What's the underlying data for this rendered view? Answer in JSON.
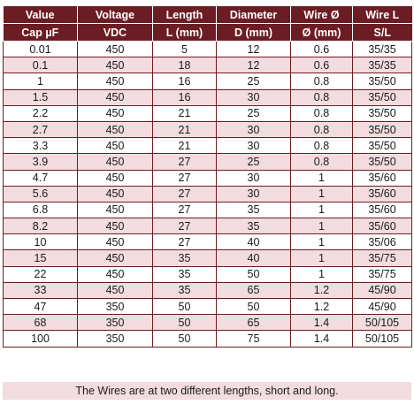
{
  "colors": {
    "header_bg": "#6b1d23",
    "header_text": "#ffffff",
    "row_alt": "#f2dcdf",
    "row_plain": "#ffffff",
    "border": "#6b1d23"
  },
  "table": {
    "header_row1": [
      "Value",
      "Voltage",
      "Length",
      "Diameter",
      "Wire Ø",
      "Wire L"
    ],
    "header_row2": [
      "Cap µF",
      "VDC",
      "L (mm)",
      "D (mm)",
      "Ø (mm)",
      "S/L"
    ],
    "rows": [
      [
        "0.01",
        "450",
        "5",
        "12",
        "0.6",
        "35/35"
      ],
      [
        "0.1",
        "450",
        "18",
        "12",
        "0.6",
        "35/35"
      ],
      [
        "1",
        "450",
        "16",
        "25",
        "0.8",
        "35/50"
      ],
      [
        "1.5",
        "450",
        "16",
        "30",
        "0.8",
        "35/50"
      ],
      [
        "2.2",
        "450",
        "21",
        "25",
        "0.8",
        "35/50"
      ],
      [
        "2.7",
        "450",
        "21",
        "30",
        "0.8",
        "35/50"
      ],
      [
        "3.3",
        "450",
        "21",
        "30",
        "0.8",
        "35/50"
      ],
      [
        "3.9",
        "450",
        "27",
        "25",
        "0.8",
        "35/50"
      ],
      [
        "4.7",
        "450",
        "27",
        "30",
        "1",
        "35/60"
      ],
      [
        "5.6",
        "450",
        "27",
        "30",
        "1",
        "35/60"
      ],
      [
        "6.8",
        "450",
        "27",
        "35",
        "1",
        "35/60"
      ],
      [
        "8.2",
        "450",
        "27",
        "35",
        "1",
        "35/60"
      ],
      [
        "10",
        "450",
        "27",
        "40",
        "1",
        "35/06"
      ],
      [
        "15",
        "450",
        "35",
        "40",
        "1",
        "35/75"
      ],
      [
        "22",
        "450",
        "35",
        "50",
        "1",
        "35/75"
      ],
      [
        "33",
        "450",
        "35",
        "65",
        "1.2",
        "45/90"
      ],
      [
        "47",
        "350",
        "50",
        "50",
        "1.2",
        "45/90"
      ],
      [
        "68",
        "350",
        "50",
        "65",
        "1.4",
        "50/105"
      ],
      [
        "100",
        "350",
        "50",
        "75",
        "1.4",
        "50/105"
      ]
    ]
  },
  "footer": {
    "note": "The Wires are at two different lengths, short and long."
  }
}
